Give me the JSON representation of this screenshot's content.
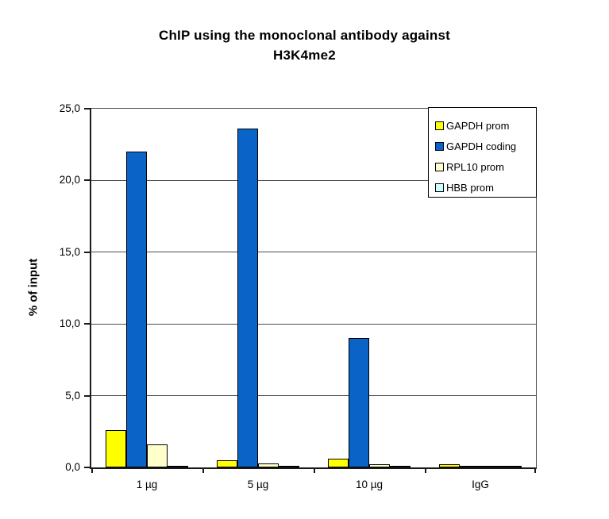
{
  "chart_data": {
    "type": "bar",
    "title": "ChIP using the monoclonal antibody against H3K4me2",
    "title_lines": [
      "ChIP using the monoclonal antibody against",
      "H3K4me2"
    ],
    "ylabel": "% of input",
    "xlabel": "",
    "categories": [
      "1 µg",
      "5 µg",
      "10 µg",
      "IgG"
    ],
    "series": [
      {
        "name": "GAPDH prom",
        "color": "#FFFF00",
        "values": [
          2.6,
          0.5,
          0.6,
          0.2
        ]
      },
      {
        "name": "GAPDH coding",
        "color": "#0A64C8",
        "values": [
          22.0,
          23.6,
          9.0,
          0.05
        ]
      },
      {
        "name": "RPL10 prom",
        "color": "#FFFFCC",
        "values": [
          1.6,
          0.25,
          0.2,
          0.05
        ]
      },
      {
        "name": "HBB prom",
        "color": "#CCFFFF",
        "values": [
          0.1,
          0.1,
          0.1,
          0.05
        ]
      }
    ],
    "ylim": [
      0,
      25
    ],
    "ytick_step": 5,
    "ytick_labels": [
      "0,0",
      "5,0",
      "10,0",
      "15,0",
      "20,0",
      "25,0"
    ],
    "grid": true,
    "legend_position": "top-right",
    "decimal_separator": ","
  },
  "style_colors": {
    "axis": "#1a1a1a",
    "gridline": "#4d4d4d",
    "background": "#FFFFFF",
    "bar_border": "#000000"
  }
}
